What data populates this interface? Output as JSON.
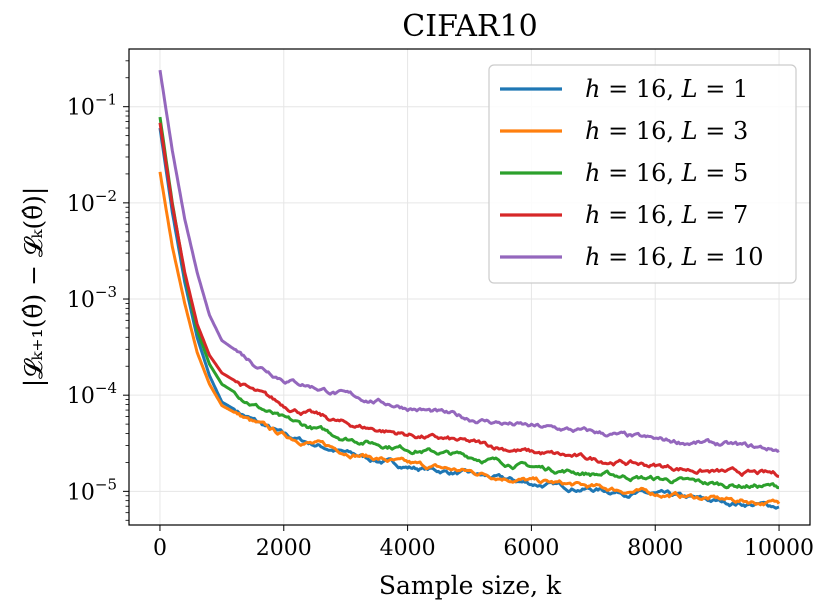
{
  "chart_data": {
    "type": "line",
    "title": "CIFAR10",
    "xlabel": "Sample size, k",
    "ylabel": "|𝓛ₖ₊₁(θ̂) − 𝓛ₖ(θ̂)|",
    "xlim": [
      -500,
      10500
    ],
    "ylim_log10": [
      -5.35,
      -0.4
    ],
    "yscale": "log",
    "grid": true,
    "legend_position": "top-right",
    "xticks": [
      {
        "value": 0,
        "label": "0"
      },
      {
        "value": 2000,
        "label": "2000"
      },
      {
        "value": 4000,
        "label": "4000"
      },
      {
        "value": 6000,
        "label": "6000"
      },
      {
        "value": 8000,
        "label": "8000"
      },
      {
        "value": 10000,
        "label": "10000"
      }
    ],
    "yticks": [
      {
        "exp": -1,
        "base": "10",
        "sup": "−1"
      },
      {
        "exp": -2,
        "base": "10",
        "sup": "−2"
      },
      {
        "exp": -3,
        "base": "10",
        "sup": "−3"
      },
      {
        "exp": -4,
        "base": "10",
        "sup": "−4"
      },
      {
        "exp": -5,
        "base": "10",
        "sup": "−5"
      }
    ],
    "x": [
      0,
      200,
      400,
      600,
      800,
      1000,
      1500,
      2000,
      3000,
      4000,
      5000,
      6000,
      7000,
      8000,
      9000,
      10000
    ],
    "series": [
      {
        "name": "h = 16, L = 1",
        "color": "#1f77b4",
        "values": [
          0.06,
          0.008,
          0.0015,
          0.0004,
          0.00016,
          8.5e-05,
          5.5e-05,
          3.8e-05,
          2.5e-05,
          1.8e-05,
          1.5e-05,
          1.2e-05,
          1.05e-05,
          9.2e-06,
          7.8e-06,
          7e-06
        ]
      },
      {
        "name": "h = 16, L = 3",
        "color": "#ff7f0e",
        "values": [
          0.021,
          0.0035,
          0.0009,
          0.00028,
          0.00013,
          7.8e-05,
          5.2e-05,
          3.8e-05,
          2.6e-05,
          1.9e-05,
          1.6e-05,
          1.28e-05,
          1.1e-05,
          9.5e-06,
          8.3e-06,
          7.5e-06
        ]
      },
      {
        "name": "h = 16, L = 5",
        "color": "#2ca02c",
        "values": [
          0.078,
          0.01,
          0.0018,
          0.00048,
          0.00021,
          0.00013,
          8.2e-05,
          5.5e-05,
          3.6e-05,
          2.8e-05,
          2.3e-05,
          1.8e-05,
          1.52e-05,
          1.35e-05,
          1.18e-05,
          1.12e-05
        ]
      },
      {
        "name": "h = 16, L = 7",
        "color": "#d62728",
        "values": [
          0.068,
          0.0095,
          0.0019,
          0.00055,
          0.00026,
          0.00017,
          0.00011,
          7.8e-05,
          5e-05,
          3.9e-05,
          3.2e-05,
          2.55e-05,
          2.15e-05,
          1.85e-05,
          1.58e-05,
          1.5e-05
        ]
      },
      {
        "name": "h = 16, L = 10",
        "color": "#9467bd",
        "values": [
          0.24,
          0.035,
          0.0068,
          0.0019,
          0.00068,
          0.00037,
          0.00022,
          0.00015,
          0.0001,
          7.5e-05,
          5.7e-05,
          4.7e-05,
          4.1e-05,
          3.4e-05,
          3.1e-05,
          2.7e-05
        ]
      }
    ],
    "legend": [
      {
        "h": "h",
        "eq1": " = 16, ",
        "L": "L",
        "eq2": " = 1"
      },
      {
        "h": "h",
        "eq1": " = 16, ",
        "L": "L",
        "eq2": " = 3"
      },
      {
        "h": "h",
        "eq1": " = 16, ",
        "L": "L",
        "eq2": " = 5"
      },
      {
        "h": "h",
        "eq1": " = 16, ",
        "L": "L",
        "eq2": " = 7"
      },
      {
        "h": "h",
        "eq1": " = 16, ",
        "L": "L",
        "eq2": " = 10"
      }
    ]
  }
}
